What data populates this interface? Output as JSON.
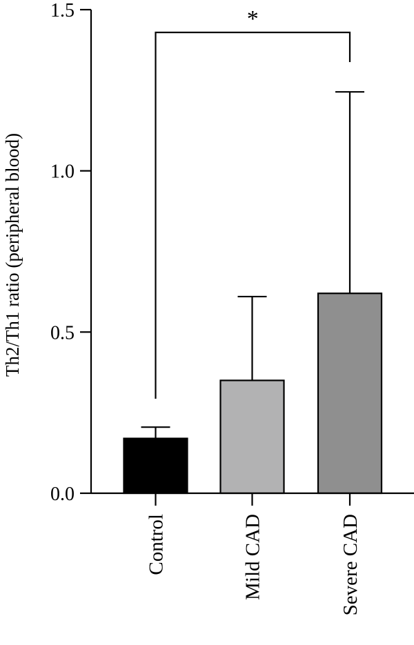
{
  "chart_data": {
    "type": "bar",
    "title": "",
    "xlabel": "",
    "ylabel": "Th2/Th1 ratio (peripheral blood)",
    "ylim": [
      0,
      1.5
    ],
    "yticks": [
      0.0,
      0.5,
      1.0,
      1.5
    ],
    "ytick_labels": [
      "0.0",
      "0.5",
      "1.0",
      "1.5"
    ],
    "categories": [
      "Control",
      "Mild CAD",
      "Severe CAD"
    ],
    "values": [
      0.17,
      0.35,
      0.62
    ],
    "errors_upper": [
      0.205,
      0.61,
      1.245
    ],
    "bar_colors": [
      "#000000",
      "#b2b2b3",
      "#8f8f8f"
    ],
    "grid": false,
    "significance": {
      "from": "Control",
      "to": "Severe CAD",
      "label": "*"
    }
  }
}
